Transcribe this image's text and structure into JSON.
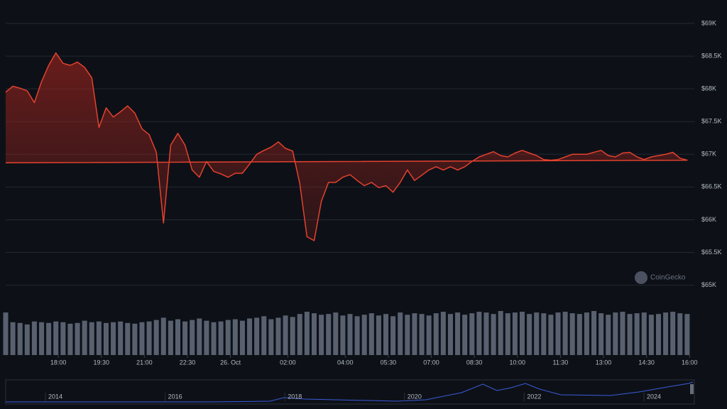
{
  "chart_data": {
    "type": "area",
    "watermark": "CoinGecko",
    "color": "#e5412f",
    "volume_color": "#596170",
    "x": [
      "16:10",
      "16:25",
      "16:40",
      "16:55",
      "17:10",
      "17:25",
      "17:40",
      "17:55",
      "18:10",
      "18:25",
      "18:40",
      "18:55",
      "19:10",
      "19:25",
      "19:40",
      "19:55",
      "20:10",
      "20:25",
      "20:40",
      "20:55",
      "21:10",
      "21:25",
      "21:40",
      "21:55",
      "22:10",
      "22:25",
      "22:40",
      "22:55",
      "23:10",
      "23:25",
      "23:40",
      "23:55",
      "00:10",
      "00:25",
      "00:40",
      "00:55",
      "01:10",
      "01:25",
      "01:40",
      "01:55",
      "02:10",
      "02:25",
      "02:40",
      "02:55",
      "03:10",
      "03:25",
      "03:40",
      "03:55",
      "04:10",
      "04:25",
      "04:40",
      "04:55",
      "05:10",
      "05:25",
      "05:40",
      "05:55",
      "06:10",
      "06:25",
      "06:40",
      "06:55",
      "07:10",
      "07:25",
      "07:40",
      "07:55",
      "08:10",
      "08:25",
      "08:40",
      "08:55",
      "09:10",
      "09:25",
      "09:40",
      "09:55",
      "10:10",
      "10:25",
      "10:40",
      "10:55",
      "11:10",
      "11:25",
      "11:40",
      "11:55",
      "12:10",
      "12:25",
      "12:40",
      "12:55",
      "13:10",
      "13:25",
      "13:40",
      "13:55",
      "14:10",
      "14:25",
      "14:40",
      "14:55",
      "15:10",
      "15:25",
      "15:40",
      "15:55",
      "16:10"
    ],
    "values": [
      67950,
      68040,
      68010,
      67970,
      67790,
      68110,
      68360,
      68550,
      68390,
      68360,
      68410,
      68330,
      68170,
      67410,
      67710,
      67570,
      67650,
      67740,
      67630,
      67390,
      67300,
      67030,
      65950,
      67140,
      67320,
      67140,
      66760,
      66650,
      66890,
      66740,
      66700,
      66650,
      66710,
      66710,
      66850,
      67000,
      67060,
      67110,
      67190,
      67090,
      67050,
      66550,
      65740,
      65680,
      66280,
      66570,
      66570,
      66650,
      66690,
      66600,
      66520,
      66570,
      66490,
      66520,
      66420,
      66570,
      66760,
      66600,
      66680,
      66760,
      66810,
      66760,
      66810,
      66760,
      66810,
      66890,
      66960,
      67000,
      67040,
      66980,
      66960,
      67020,
      67060,
      67020,
      66980,
      66920,
      66910,
      66920,
      66960,
      67000,
      67000,
      67000,
      67030,
      67060,
      66980,
      66960,
      67020,
      67030,
      66960,
      66920,
      66960,
      66980,
      67000,
      67030,
      66940,
      66910,
      66870
    ],
    "volume": [
      42,
      44,
      43,
      41,
      45,
      44,
      43,
      45,
      44,
      42,
      43,
      46,
      44,
      45,
      43,
      44,
      45,
      43,
      42,
      44,
      45,
      47,
      50,
      46,
      48,
      45,
      47,
      49,
      46,
      44,
      45,
      47,
      48,
      46,
      49,
      50,
      52,
      48,
      50,
      53,
      51,
      55,
      58,
      56,
      54,
      55,
      57,
      53,
      55,
      52,
      54,
      56,
      53,
      55,
      52,
      57,
      54,
      56,
      55,
      53,
      56,
      58,
      55,
      57,
      54,
      56,
      58,
      57,
      55,
      59,
      56,
      57,
      58,
      55,
      57,
      56,
      54,
      57,
      58,
      56,
      55,
      57,
      59,
      56,
      54,
      57,
      58,
      55,
      56,
      57,
      54,
      55,
      57,
      58,
      56,
      55,
      57
    ],
    "ylim": [
      64800,
      69250
    ],
    "yticks": [
      {
        "value": 65000,
        "label": "$65K"
      },
      {
        "value": 65500,
        "label": "$65.5K"
      },
      {
        "value": 66000,
        "label": "$66K"
      },
      {
        "value": 66500,
        "label": "$66.5K"
      },
      {
        "value": 67000,
        "label": "$67K"
      },
      {
        "value": 67500,
        "label": "$67.5K"
      },
      {
        "value": 68000,
        "label": "$68K"
      },
      {
        "value": 68500,
        "label": "$68.5K"
      },
      {
        "value": 69000,
        "label": "$69K"
      }
    ],
    "xticks": [
      "18:00",
      "19:30",
      "21:00",
      "22:30",
      {
        "value": "00:00",
        "label": "26. Oct"
      },
      "02:00",
      "04:00",
      "05:30",
      "07:00",
      "08:30",
      "10:00",
      "11:30",
      "13:00",
      "14:30",
      "16:00"
    ],
    "grid": true,
    "navigator_labels": [
      "2014",
      "2016",
      "2018",
      "2020",
      "2022",
      "2024"
    ]
  }
}
